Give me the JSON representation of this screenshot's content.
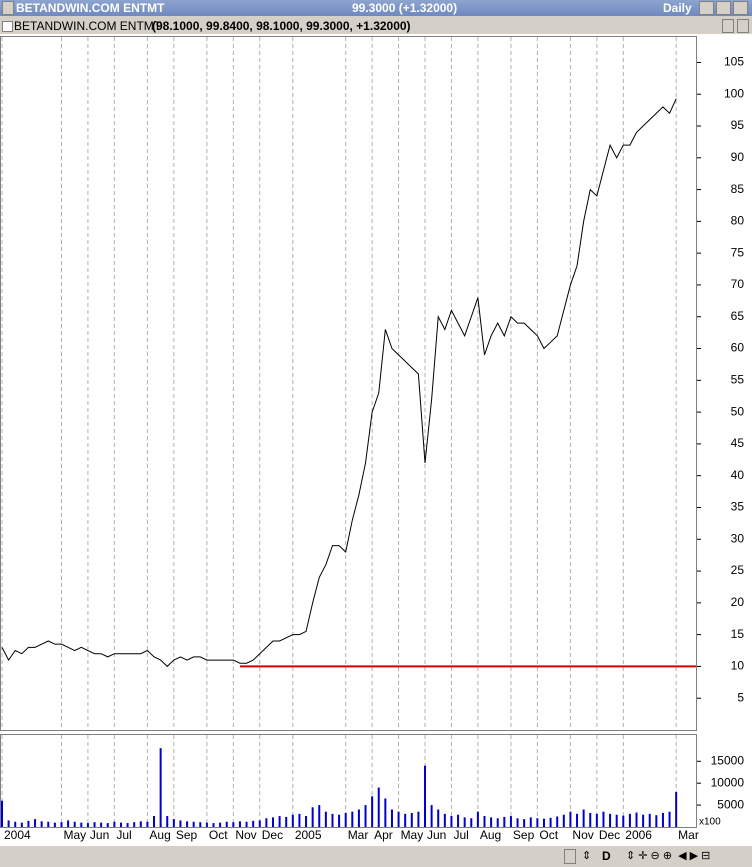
{
  "window": {
    "title": "BETANDWIN.COM ENTMT",
    "last_quote": "99.3000 (+1.32000)",
    "period": "Daily",
    "ohlc": "(98.1000, 99.8400, 98.1000, 99.3000, +1.32000)",
    "toolbar_label": "D"
  },
  "chart_data": [
    {
      "type": "line",
      "x": [
        0,
        1,
        2,
        3,
        4,
        5,
        6,
        7,
        8,
        9,
        10,
        11,
        12,
        13,
        14,
        15,
        16,
        17,
        18,
        19,
        20,
        21,
        22,
        23,
        24,
        25,
        26,
        27,
        28,
        29,
        30,
        31,
        32,
        33,
        34,
        35,
        36,
        37,
        38,
        39,
        40,
        41,
        42,
        43,
        44,
        45,
        46,
        47,
        48,
        49,
        50,
        51,
        52,
        53,
        54,
        55,
        56,
        57,
        58,
        59,
        60,
        61,
        62,
        63,
        64,
        65,
        66,
        67,
        68,
        69,
        70,
        71,
        72,
        73,
        74,
        75,
        76,
        77,
        78,
        79,
        80,
        81,
        82,
        83,
        84,
        85,
        86,
        87,
        88,
        89,
        90,
        91,
        92,
        93,
        94,
        95,
        96,
        97,
        98,
        99,
        100,
        101,
        102
      ],
      "series": [
        {
          "name": "BETANDWIN.COM ENTMT",
          "color": "#000000",
          "values": [
            13,
            11,
            12.5,
            12,
            13,
            13,
            13.5,
            14,
            13.5,
            13.5,
            13,
            12.5,
            13,
            12.5,
            12,
            12,
            11.5,
            12,
            12,
            12,
            12,
            12,
            12.5,
            11.5,
            11,
            10,
            11,
            11.5,
            11,
            11.5,
            11.5,
            11,
            11,
            11,
            11,
            11,
            10.5,
            10.5,
            11,
            12,
            13,
            14,
            14,
            14.5,
            15,
            15,
            15.5,
            20,
            24,
            26,
            29,
            29,
            28,
            33,
            37,
            42,
            50,
            53,
            63,
            60,
            59,
            58,
            57,
            56,
            42,
            52,
            65,
            63,
            66,
            64,
            62,
            65,
            68,
            59,
            62,
            64,
            62,
            65,
            64,
            64,
            63,
            62,
            60,
            61,
            62,
            66,
            70,
            73,
            80,
            85,
            84,
            88,
            92,
            90,
            92,
            92,
            94,
            95,
            96,
            97,
            98,
            97,
            99.3
          ]
        }
      ],
      "xlim": [
        0,
        105
      ],
      "xticks": [
        {
          "value": 0,
          "label": "2004"
        },
        {
          "value": 9,
          "label": "May"
        },
        {
          "value": 13,
          "label": "Jun"
        },
        {
          "value": 17,
          "label": "Jul"
        },
        {
          "value": 22,
          "label": "Aug"
        },
        {
          "value": 26,
          "label": "Sep"
        },
        {
          "value": 31,
          "label": "Oct"
        },
        {
          "value": 35,
          "label": "Nov"
        },
        {
          "value": 39,
          "label": "Dec"
        },
        {
          "value": 44,
          "label": "2005"
        },
        {
          "value": 52,
          "label": "Mar"
        },
        {
          "value": 56,
          "label": "Apr"
        },
        {
          "value": 60,
          "label": "May"
        },
        {
          "value": 64,
          "label": "Jun"
        },
        {
          "value": 68,
          "label": "Jul"
        },
        {
          "value": 72,
          "label": "Aug"
        },
        {
          "value": 77,
          "label": "Sep"
        },
        {
          "value": 81,
          "label": "Oct"
        },
        {
          "value": 86,
          "label": "Nov"
        },
        {
          "value": 90,
          "label": "Dec"
        },
        {
          "value": 94,
          "label": "2006"
        },
        {
          "value": 102,
          "label": "Mar"
        }
      ],
      "ylim": [
        0,
        109
      ],
      "yticks": [
        5,
        10,
        15,
        20,
        25,
        30,
        35,
        40,
        45,
        50,
        55,
        60,
        65,
        70,
        75,
        80,
        85,
        90,
        95,
        100,
        105
      ],
      "grid": true,
      "reference_line": {
        "value": 10,
        "x_start": 36,
        "color": "#e00000"
      }
    },
    {
      "type": "bar",
      "x": [
        0,
        1,
        2,
        3,
        4,
        5,
        6,
        7,
        8,
        9,
        10,
        11,
        12,
        13,
        14,
        15,
        16,
        17,
        18,
        19,
        20,
        21,
        22,
        23,
        24,
        25,
        26,
        27,
        28,
        29,
        30,
        31,
        32,
        33,
        34,
        35,
        36,
        37,
        38,
        39,
        40,
        41,
        42,
        43,
        44,
        45,
        46,
        47,
        48,
        49,
        50,
        51,
        52,
        53,
        54,
        55,
        56,
        57,
        58,
        59,
        60,
        61,
        62,
        63,
        64,
        65,
        66,
        67,
        68,
        69,
        70,
        71,
        72,
        73,
        74,
        75,
        76,
        77,
        78,
        79,
        80,
        81,
        82,
        83,
        84,
        85,
        86,
        87,
        88,
        89,
        90,
        91,
        92,
        93,
        94,
        95,
        96,
        97,
        98,
        99,
        100,
        101,
        102
      ],
      "color": "#0000cc",
      "values": [
        6000,
        1500,
        1200,
        1000,
        1400,
        1800,
        1300,
        1200,
        1000,
        1100,
        1500,
        1200,
        1000,
        900,
        1100,
        1000,
        900,
        1200,
        1000,
        900,
        1100,
        1300,
        1200,
        2500,
        18000,
        2500,
        1800,
        1500,
        1300,
        1200,
        1100,
        1000,
        900,
        1000,
        1200,
        1100,
        1300,
        1200,
        1400,
        1500,
        2000,
        2200,
        2500,
        2300,
        2800,
        3000,
        2500,
        4500,
        5000,
        3500,
        3000,
        2800,
        3200,
        3500,
        4000,
        5000,
        7000,
        9000,
        6500,
        4000,
        3500,
        3000,
        3200,
        3500,
        14000,
        5000,
        4000,
        3000,
        2500,
        2800,
        2200,
        2000,
        3500,
        2500,
        2200,
        2000,
        2300,
        2500,
        2000,
        1800,
        2200,
        2000,
        1900,
        2100,
        2400,
        2800,
        3500,
        3000,
        4000,
        3200,
        3000,
        3500,
        3000,
        2800,
        2600,
        3000,
        3300,
        2800,
        3000,
        2700,
        3200,
        3500,
        8000
      ],
      "ylim": [
        0,
        21000
      ],
      "yticks": [
        5000,
        10000,
        15000
      ],
      "scale_label": "x100",
      "grid": true
    }
  ]
}
